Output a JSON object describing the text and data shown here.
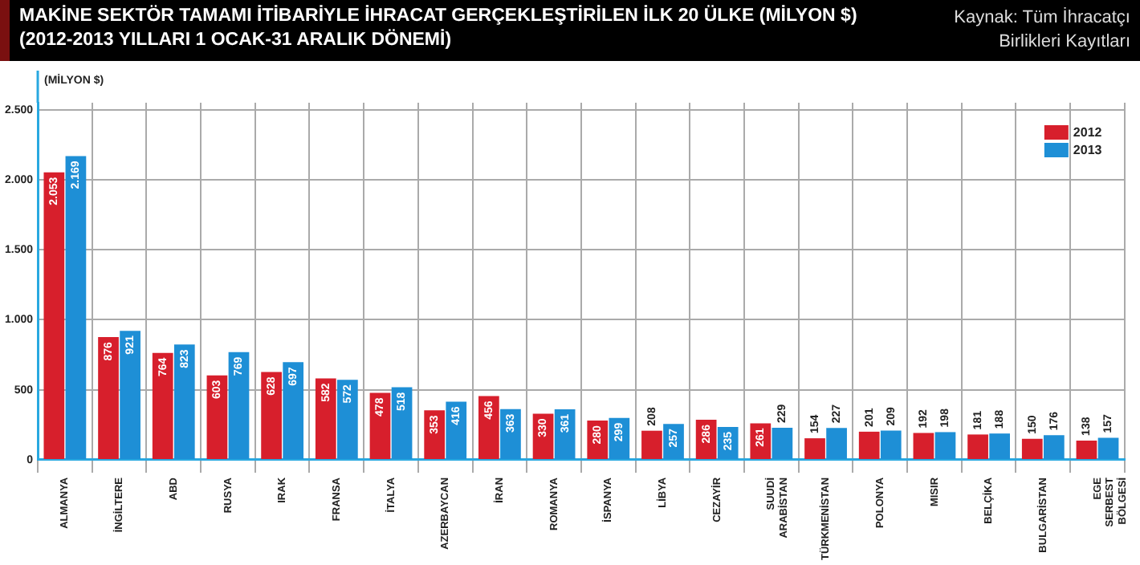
{
  "chart_data": {
    "type": "bar",
    "title": "MAKİNE SEKTÖR TAMAMI İTİBARİYLE İHRACAT GERÇEKLEŞTİRİLEN İLK 20 ÜLKE (MİLYON $)",
    "subtitle": "(2012-2013 YILLARI 1 OCAK-31 ARALIK DÖNEMİ)",
    "ylabel": "(MİLYON $)",
    "annotations": [
      "Kaynak: Tüm İhracatçı Birlikleri Kayıtları"
    ],
    "categories": [
      "ALMANYA",
      "İNGİLTERE",
      "ABD",
      "RUSYA",
      "IRAK",
      "FRANSA",
      "İTALYA",
      "AZERBAYCAN",
      "İRAN",
      "ROMANYA",
      "İSPANYA",
      "LİBYA",
      "CEZAYİR",
      "SUUDİ ARABİSTAN",
      "TÜRKMENİSTAN",
      "POLONYA",
      "MISIR",
      "BELÇİKA",
      "BULGARİSTAN",
      "EGE SERBEST BÖLGESİ"
    ],
    "series": [
      {
        "name": "2012",
        "color": "#d71f2c",
        "values": [
          2053,
          876,
          764,
          603,
          628,
          582,
          478,
          353,
          456,
          330,
          280,
          208,
          286,
          261,
          154,
          201,
          192,
          181,
          150,
          138
        ],
        "value_labels": [
          "2.053",
          "876",
          "764",
          "603",
          "628",
          "582",
          "478",
          "353",
          "456",
          "330",
          "280",
          "208",
          "286",
          "261",
          "154",
          "201",
          "192",
          "181",
          "150",
          "138"
        ]
      },
      {
        "name": "2013",
        "color": "#1e8fd6",
        "values": [
          2169,
          921,
          823,
          769,
          697,
          572,
          518,
          416,
          363,
          361,
          299,
          257,
          235,
          229,
          227,
          209,
          198,
          188,
          176,
          157
        ],
        "value_labels": [
          "2.169",
          "921",
          "823",
          "769",
          "697",
          "572",
          "518",
          "416",
          "363",
          "361",
          "299",
          "257",
          "235",
          "229",
          "227",
          "209",
          "198",
          "188",
          "176",
          "157"
        ]
      }
    ],
    "ylim": [
      0,
      2550
    ],
    "yticks": [
      0,
      {
        "value": 500,
        "label": "500"
      },
      {
        "value": 1000,
        "label": "1.000"
      },
      {
        "value": 1500,
        "label": "1.500"
      },
      {
        "value": 2000,
        "label": "2.000"
      },
      {
        "value": 2500,
        "label": "2.500"
      }
    ],
    "grid": true,
    "legend": "top right"
  }
}
